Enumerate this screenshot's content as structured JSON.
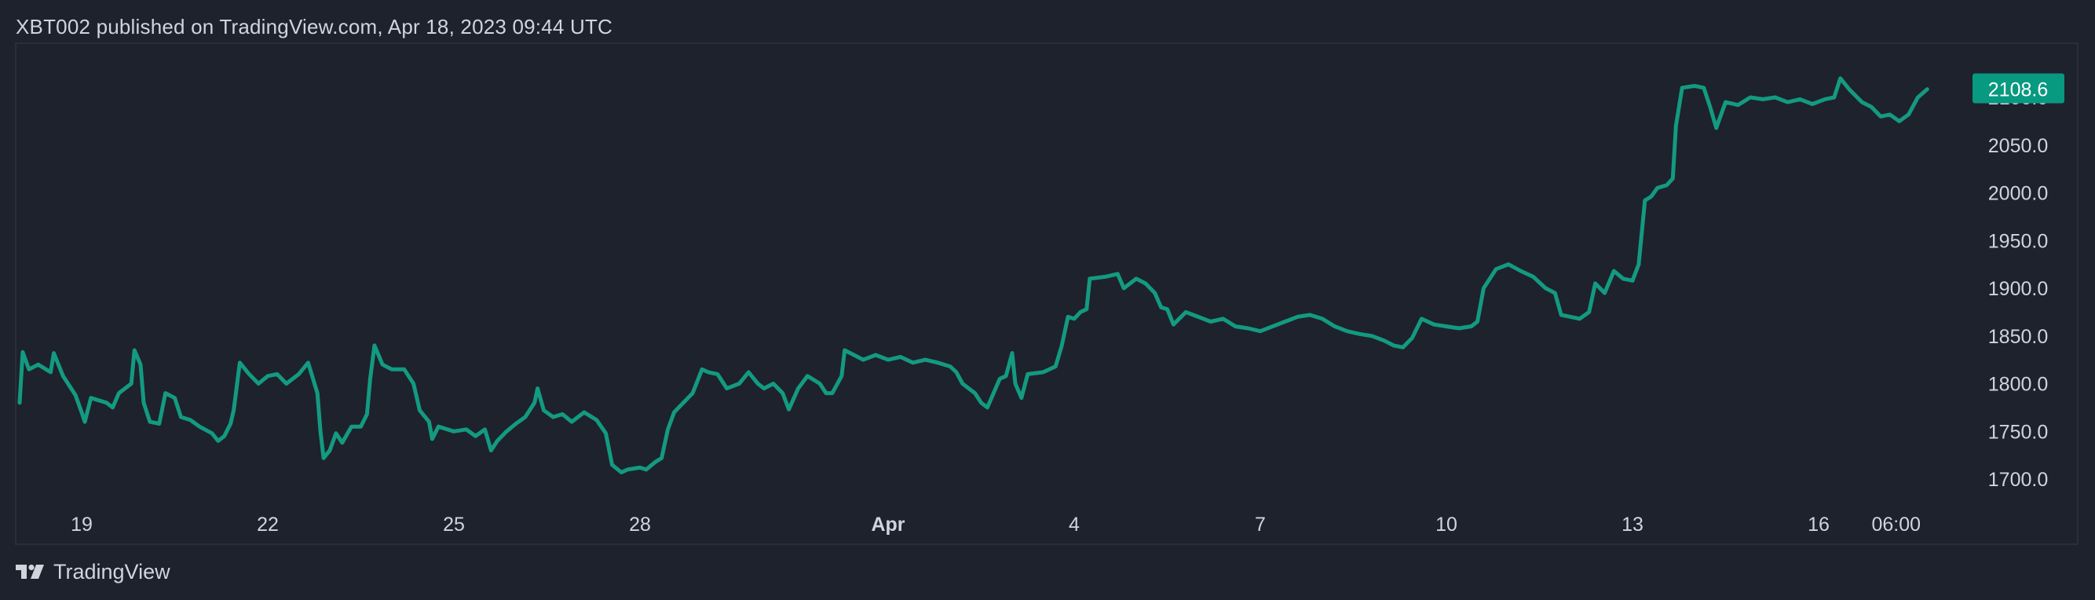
{
  "header": {
    "publisher": "XBT002 published on TradingView.com, Apr 18, 2023 09:44 UTC"
  },
  "footer": {
    "brand": "TradingView"
  },
  "colors": {
    "background": "#1e222d",
    "line": "#139a80",
    "price_badge": "#089981",
    "text": "#d1d4dc",
    "frame": "#2a2e39"
  },
  "chart_data": {
    "type": "line",
    "title": "",
    "xlabel": "",
    "ylabel": "",
    "ylim": [
      1690,
      2140
    ],
    "y_ticks": [
      "2100.0",
      "2050.0",
      "2000.0",
      "1950.0",
      "1900.0",
      "1850.0",
      "1800.0",
      "1750.0",
      "1700.0"
    ],
    "x_ticks": [
      {
        "label": "19",
        "t": 1,
        "bold": false
      },
      {
        "label": "22",
        "t": 4,
        "bold": false
      },
      {
        "label": "25",
        "t": 7,
        "bold": false
      },
      {
        "label": "28",
        "t": 10,
        "bold": false
      },
      {
        "label": "Apr",
        "t": 14,
        "bold": true
      },
      {
        "label": "4",
        "t": 17,
        "bold": false
      },
      {
        "label": "7",
        "t": 20,
        "bold": false
      },
      {
        "label": "10",
        "t": 23,
        "bold": false
      },
      {
        "label": "13",
        "t": 26,
        "bold": false
      },
      {
        "label": "16",
        "t": 29,
        "bold": false
      },
      {
        "label": "06:00",
        "t": 30.25,
        "bold": false
      }
    ],
    "last_price_label": "2108.6",
    "last_value": 2108.6,
    "grid": false,
    "legend": "none",
    "series": [
      {
        "points": [
          [
            0.0,
            1780
          ],
          [
            0.05,
            1833
          ],
          [
            0.15,
            1815
          ],
          [
            0.3,
            1820
          ],
          [
            0.5,
            1812
          ],
          [
            0.55,
            1832
          ],
          [
            0.7,
            1808
          ],
          [
            0.9,
            1788
          ],
          [
            1.0,
            1770
          ],
          [
            1.05,
            1760
          ],
          [
            1.15,
            1785
          ],
          [
            1.4,
            1780
          ],
          [
            1.5,
            1775
          ],
          [
            1.6,
            1790
          ],
          [
            1.8,
            1800
          ],
          [
            1.85,
            1835
          ],
          [
            1.95,
            1820
          ],
          [
            2.0,
            1780
          ],
          [
            2.1,
            1760
          ],
          [
            2.25,
            1758
          ],
          [
            2.35,
            1790
          ],
          [
            2.5,
            1785
          ],
          [
            2.6,
            1765
          ],
          [
            2.75,
            1762
          ],
          [
            2.9,
            1755
          ],
          [
            3.1,
            1748
          ],
          [
            3.2,
            1740
          ],
          [
            3.3,
            1745
          ],
          [
            3.4,
            1758
          ],
          [
            3.45,
            1772
          ],
          [
            3.55,
            1822
          ],
          [
            3.7,
            1810
          ],
          [
            3.85,
            1800
          ],
          [
            4.0,
            1808
          ],
          [
            4.15,
            1810
          ],
          [
            4.3,
            1800
          ],
          [
            4.5,
            1810
          ],
          [
            4.65,
            1822
          ],
          [
            4.8,
            1790
          ],
          [
            4.85,
            1750
          ],
          [
            4.9,
            1722
          ],
          [
            5.0,
            1730
          ],
          [
            5.1,
            1748
          ],
          [
            5.2,
            1738
          ],
          [
            5.35,
            1755
          ],
          [
            5.5,
            1755
          ],
          [
            5.6,
            1768
          ],
          [
            5.65,
            1805
          ],
          [
            5.72,
            1840
          ],
          [
            5.85,
            1820
          ],
          [
            6.0,
            1815
          ],
          [
            6.2,
            1815
          ],
          [
            6.35,
            1800
          ],
          [
            6.45,
            1772
          ],
          [
            6.6,
            1760
          ],
          [
            6.65,
            1742
          ],
          [
            6.75,
            1755
          ],
          [
            7.0,
            1750
          ],
          [
            7.2,
            1752
          ],
          [
            7.35,
            1745
          ],
          [
            7.5,
            1752
          ],
          [
            7.6,
            1730
          ],
          [
            7.7,
            1740
          ],
          [
            7.85,
            1750
          ],
          [
            8.0,
            1758
          ],
          [
            8.15,
            1765
          ],
          [
            8.3,
            1780
          ],
          [
            8.35,
            1795
          ],
          [
            8.45,
            1772
          ],
          [
            8.6,
            1765
          ],
          [
            8.75,
            1768
          ],
          [
            8.9,
            1760
          ],
          [
            9.1,
            1770
          ],
          [
            9.3,
            1762
          ],
          [
            9.45,
            1748
          ],
          [
            9.55,
            1715
          ],
          [
            9.7,
            1707
          ],
          [
            9.8,
            1710
          ],
          [
            10.0,
            1712
          ],
          [
            10.1,
            1710
          ],
          [
            10.25,
            1718
          ],
          [
            10.35,
            1722
          ],
          [
            10.45,
            1752
          ],
          [
            10.55,
            1770
          ],
          [
            10.7,
            1780
          ],
          [
            10.85,
            1790
          ],
          [
            11.0,
            1815
          ],
          [
            11.1,
            1812
          ],
          [
            11.25,
            1810
          ],
          [
            11.4,
            1795
          ],
          [
            11.6,
            1800
          ],
          [
            11.75,
            1812
          ],
          [
            11.9,
            1800
          ],
          [
            12.0,
            1795
          ],
          [
            12.15,
            1800
          ],
          [
            12.3,
            1790
          ],
          [
            12.4,
            1773
          ],
          [
            12.55,
            1795
          ],
          [
            12.7,
            1808
          ],
          [
            12.9,
            1800
          ],
          [
            13.0,
            1790
          ],
          [
            13.1,
            1790
          ],
          [
            13.25,
            1808
          ],
          [
            13.3,
            1835
          ],
          [
            13.45,
            1830
          ],
          [
            13.6,
            1825
          ],
          [
            13.8,
            1830
          ],
          [
            14.0,
            1825
          ],
          [
            14.2,
            1828
          ],
          [
            14.4,
            1822
          ],
          [
            14.6,
            1825
          ],
          [
            14.8,
            1822
          ],
          [
            15.0,
            1818
          ],
          [
            15.1,
            1812
          ],
          [
            15.2,
            1800
          ],
          [
            15.3,
            1795
          ],
          [
            15.4,
            1790
          ],
          [
            15.5,
            1780
          ],
          [
            15.6,
            1775
          ],
          [
            15.7,
            1790
          ],
          [
            15.8,
            1805
          ],
          [
            15.9,
            1808
          ],
          [
            16.0,
            1832
          ],
          [
            16.05,
            1800
          ],
          [
            16.15,
            1785
          ],
          [
            16.25,
            1810
          ],
          [
            16.5,
            1812
          ],
          [
            16.7,
            1818
          ],
          [
            16.8,
            1840
          ],
          [
            16.9,
            1870
          ],
          [
            17.0,
            1868
          ],
          [
            17.1,
            1875
          ],
          [
            17.2,
            1878
          ],
          [
            17.25,
            1910
          ],
          [
            17.5,
            1912
          ],
          [
            17.7,
            1915
          ],
          [
            17.8,
            1900
          ],
          [
            18.0,
            1910
          ],
          [
            18.15,
            1905
          ],
          [
            18.3,
            1895
          ],
          [
            18.4,
            1880
          ],
          [
            18.5,
            1878
          ],
          [
            18.6,
            1862
          ],
          [
            18.8,
            1875
          ],
          [
            19.0,
            1870
          ],
          [
            19.2,
            1865
          ],
          [
            19.4,
            1868
          ],
          [
            19.6,
            1860
          ],
          [
            19.8,
            1858
          ],
          [
            20.0,
            1855
          ],
          [
            20.2,
            1860
          ],
          [
            20.4,
            1865
          ],
          [
            20.6,
            1870
          ],
          [
            20.8,
            1872
          ],
          [
            21.0,
            1868
          ],
          [
            21.2,
            1860
          ],
          [
            21.4,
            1855
          ],
          [
            21.6,
            1852
          ],
          [
            21.8,
            1850
          ],
          [
            22.0,
            1845
          ],
          [
            22.15,
            1840
          ],
          [
            22.3,
            1838
          ],
          [
            22.45,
            1848
          ],
          [
            22.6,
            1868
          ],
          [
            22.8,
            1862
          ],
          [
            23.0,
            1860
          ],
          [
            23.2,
            1858
          ],
          [
            23.4,
            1860
          ],
          [
            23.5,
            1865
          ],
          [
            23.6,
            1900
          ],
          [
            23.8,
            1920
          ],
          [
            24.0,
            1925
          ],
          [
            24.2,
            1918
          ],
          [
            24.4,
            1912
          ],
          [
            24.6,
            1900
          ],
          [
            24.75,
            1895
          ],
          [
            24.85,
            1872
          ],
          [
            25.0,
            1870
          ],
          [
            25.15,
            1868
          ],
          [
            25.3,
            1875
          ],
          [
            25.4,
            1905
          ],
          [
            25.55,
            1895
          ],
          [
            25.7,
            1918
          ],
          [
            25.85,
            1910
          ],
          [
            26.0,
            1908
          ],
          [
            26.1,
            1925
          ],
          [
            26.2,
            1992
          ],
          [
            26.3,
            1996
          ],
          [
            26.4,
            2005
          ],
          [
            26.55,
            2008
          ],
          [
            26.65,
            2015
          ],
          [
            26.7,
            2070
          ],
          [
            26.8,
            2110
          ],
          [
            27.0,
            2112
          ],
          [
            27.15,
            2110
          ],
          [
            27.25,
            2090
          ],
          [
            27.35,
            2068
          ],
          [
            27.5,
            2095
          ],
          [
            27.7,
            2092
          ],
          [
            27.9,
            2100
          ],
          [
            28.1,
            2098
          ],
          [
            28.3,
            2100
          ],
          [
            28.5,
            2095
          ],
          [
            28.7,
            2098
          ],
          [
            28.9,
            2093
          ],
          [
            29.1,
            2098
          ],
          [
            29.25,
            2100
          ],
          [
            29.35,
            2120
          ],
          [
            29.5,
            2108
          ],
          [
            29.7,
            2095
          ],
          [
            29.85,
            2090
          ],
          [
            30.0,
            2080
          ],
          [
            30.15,
            2082
          ],
          [
            30.3,
            2075
          ],
          [
            30.45,
            2082
          ],
          [
            30.6,
            2100
          ],
          [
            30.75,
            2108.6
          ]
        ]
      }
    ]
  }
}
